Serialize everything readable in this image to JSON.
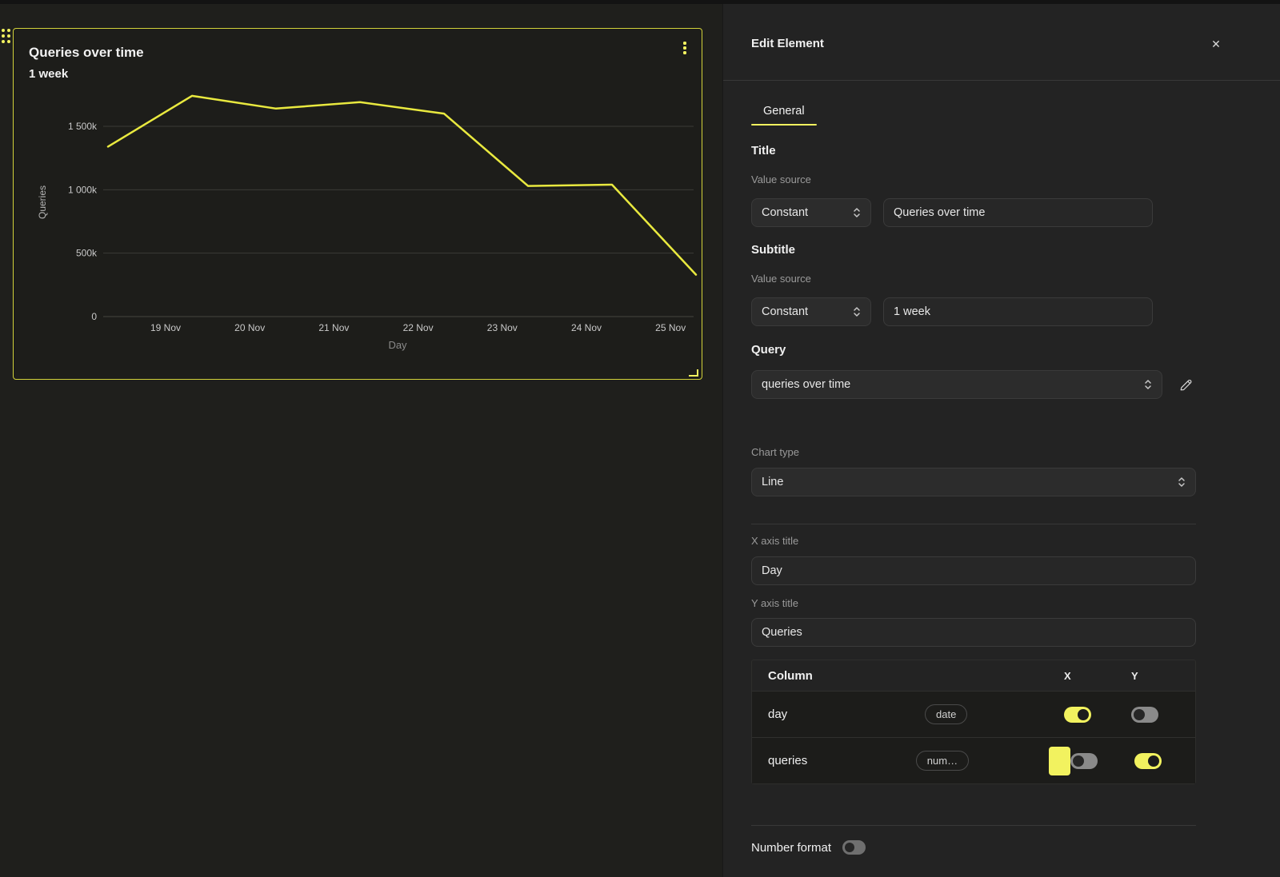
{
  "colors": {
    "accent": "#f2f25f",
    "chart_line": "#e9e93f",
    "widget_border": "#d2d23a",
    "grid_line": "#3b3b37"
  },
  "icons": {
    "close": "✕",
    "drag_handle": "dots-grid",
    "kebab": "vertical-dots",
    "chevron": "up-down",
    "pencil": "edit-pencil"
  },
  "chart_data": {
    "type": "line",
    "title": "Queries over time",
    "subtitle": "1 week",
    "xlabel": "Day",
    "ylabel": "Queries",
    "x_tick_labels": [
      "19 Nov",
      "20 Nov",
      "21 Nov",
      "22 Nov",
      "23 Nov",
      "24 Nov",
      "25 Nov"
    ],
    "x_point_days": [
      "18 Nov",
      "19 Nov",
      "20 Nov",
      "21 Nov",
      "22 Nov",
      "23 Nov",
      "24 Nov",
      "25 Nov"
    ],
    "y_ticks": [
      {
        "label": "1 500k",
        "value": 1500000
      },
      {
        "label": "1 000k",
        "value": 1000000
      },
      {
        "label": "500k",
        "value": 500000
      },
      {
        "label": "0",
        "value": 0
      }
    ],
    "ylim": [
      0,
      1850000
    ],
    "grid": true,
    "legend": false,
    "series": [
      {
        "name": "queries",
        "color": "#e9e93f",
        "values": [
          1340000,
          1740000,
          1640000,
          1690000,
          1600000,
          1030000,
          1040000,
          330000
        ]
      }
    ]
  },
  "editor": {
    "title": "Edit Element",
    "tabs": [
      {
        "label": "General",
        "active": true
      }
    ],
    "sections": {
      "title": {
        "heading": "Title",
        "value_source_label": "Value source",
        "source": "Constant",
        "value": "Queries over time"
      },
      "subtitle": {
        "heading": "Subtitle",
        "value_source_label": "Value source",
        "source": "Constant",
        "value": "1 week"
      },
      "query": {
        "heading": "Query",
        "selected": "queries over time"
      },
      "chart_type": {
        "label": "Chart type",
        "value": "Line"
      },
      "x_axis": {
        "label": "X axis title",
        "value": "Day"
      },
      "y_axis": {
        "label": "Y axis title",
        "value": "Queries"
      },
      "columns_table": {
        "headers": {
          "column": "Column",
          "x": "X",
          "y": "Y"
        },
        "rows": [
          {
            "name": "day",
            "type_badge": "date",
            "x_on": true,
            "y_on": false,
            "has_swatch": false
          },
          {
            "name": "queries",
            "type_badge": "num…",
            "x_on": false,
            "y_on": true,
            "has_swatch": true,
            "swatch_color": "#f2f25f"
          }
        ]
      },
      "number_format": {
        "label": "Number format",
        "on": false
      }
    }
  }
}
